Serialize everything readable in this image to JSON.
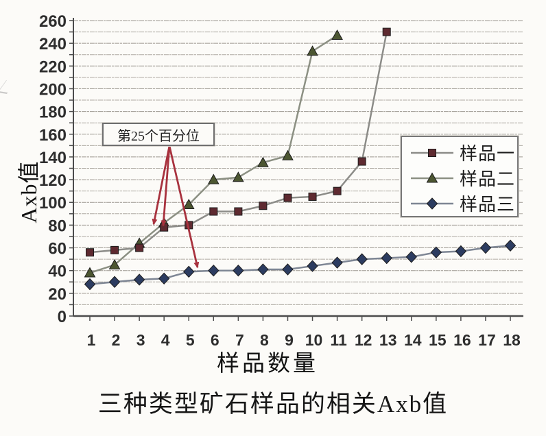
{
  "y_axis": {
    "title": "Axb值",
    "min": 0,
    "max": 260,
    "label_step": 20,
    "minor_step": 10,
    "tick_labels": [
      "0",
      "20",
      "40",
      "60",
      "80",
      "100",
      "120",
      "140",
      "160",
      "180",
      "200",
      "220",
      "240",
      "260"
    ]
  },
  "x_axis": {
    "title": "样品数量",
    "labels": [
      "1",
      "2",
      "3",
      "4",
      "5",
      "6",
      "7",
      "8",
      "9",
      "10",
      "11",
      "12",
      "13",
      "14",
      "15",
      "16",
      "17",
      "18"
    ]
  },
  "caption": "三种类型矿石样品的相关Axb值",
  "annotation": {
    "text": "第25个百分位",
    "arrow_color": "#a8323e",
    "arrows": [
      {
        "from": [
          247,
          213
        ],
        "to": [
          224,
          327
        ]
      },
      {
        "from": [
          247,
          213
        ],
        "to": [
          238,
          329
        ]
      },
      {
        "from": [
          247,
          213
        ],
        "to": [
          288,
          390
        ]
      }
    ]
  },
  "legend": {
    "position": "middle-right"
  },
  "colors": {
    "grid_major": "#9b978f",
    "grid_minor": "#aeaaa2",
    "axis": "#4c4c4c",
    "tick_text": "#2e2e2e"
  },
  "chart_data": {
    "type": "line",
    "x": [
      1,
      2,
      3,
      4,
      5,
      6,
      7,
      8,
      9,
      10,
      11,
      12,
      13,
      14,
      15,
      16,
      17,
      18
    ],
    "series": [
      {
        "name": "样品一",
        "marker": "square",
        "marker_color": "#5e2a30",
        "line_color": "#8c8c88",
        "values": [
          56,
          58,
          60,
          78,
          80,
          92,
          92,
          97,
          104,
          105,
          110,
          136,
          250
        ]
      },
      {
        "name": "样品二",
        "marker": "triangle",
        "marker_color": "#4c5631",
        "line_color": "#8c9083",
        "values": [
          38,
          45,
          64,
          82,
          98,
          120,
          122,
          135,
          141,
          233,
          247
        ]
      },
      {
        "name": "样品三",
        "marker": "diamond",
        "marker_color": "#2c3c60",
        "line_color": "#7e8694",
        "values": [
          28,
          30,
          32,
          33,
          39,
          40,
          40,
          41,
          41,
          44,
          47,
          50,
          51,
          52,
          56,
          57,
          60,
          62
        ]
      }
    ],
    "title": "三种类型矿石样品的相关Axb值",
    "xlabel": "样品数量",
    "ylabel": "Axb值",
    "ylim": [
      0,
      260
    ],
    "xlim": [
      1,
      18
    ],
    "grid": "horizontal every 10",
    "legend_position": "middle-right",
    "annotation": "第25个百分位 (arrows point to 样品一 x=4≈78, 样品二 x=4≈82, 样品三 x≈5-6≈40)"
  }
}
